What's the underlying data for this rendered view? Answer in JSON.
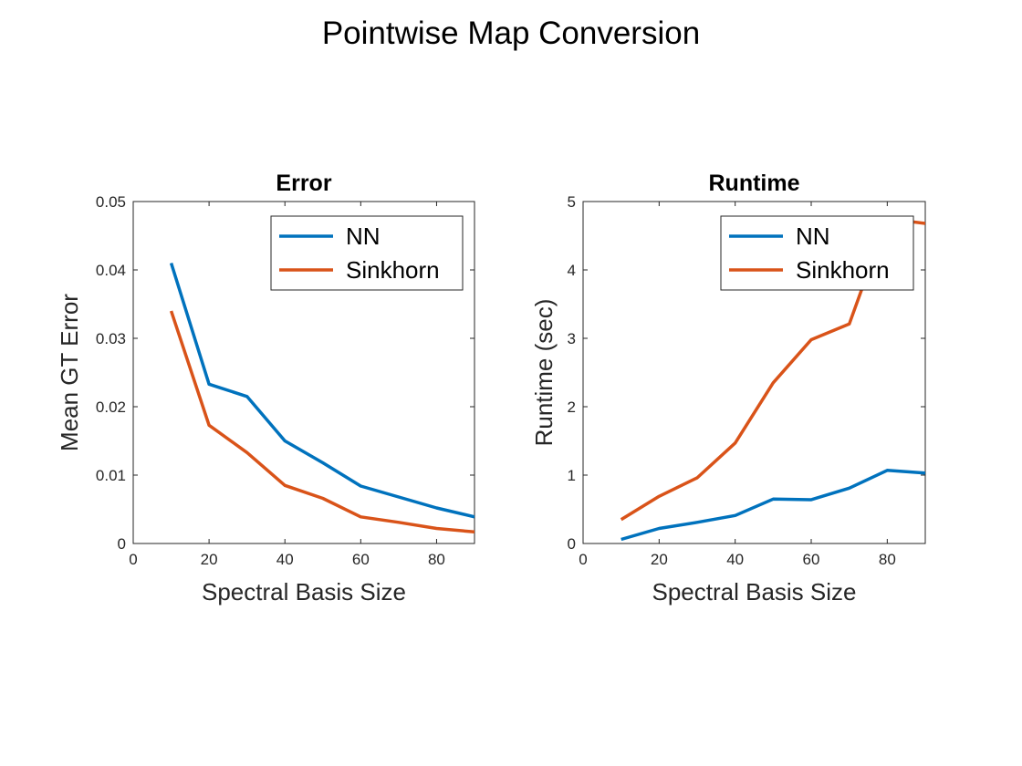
{
  "figure_title": "Pointwise Map Conversion",
  "chart_data": [
    {
      "type": "line",
      "title": "Error",
      "xlabel": "Spectral Basis Size",
      "ylabel": "Mean GT Error",
      "xlim": [
        0,
        90
      ],
      "ylim": [
        0,
        0.05
      ],
      "xticks": [
        0,
        20,
        40,
        60,
        80
      ],
      "xtick_labels": [
        "0",
        "20",
        "40",
        "60",
        "80"
      ],
      "yticks": [
        0,
        0.01,
        0.02,
        0.03,
        0.04,
        0.05
      ],
      "ytick_labels": [
        "0",
        "0.01",
        "0.02",
        "0.03",
        "0.04",
        "0.05"
      ],
      "grid": false,
      "legend_position": "top-right",
      "x": [
        10,
        20,
        30,
        40,
        50,
        60,
        70,
        80,
        90
      ],
      "series": [
        {
          "name": "NN",
          "color": "#0072BD",
          "values": [
            0.041,
            0.0233,
            0.0215,
            0.015,
            0.0118,
            0.0084,
            0.0068,
            0.0052,
            0.0039
          ]
        },
        {
          "name": "Sinkhorn",
          "color": "#D95319",
          "values": [
            0.034,
            0.0173,
            0.0133,
            0.0085,
            0.0066,
            0.0039,
            0.0031,
            0.0022,
            0.0017
          ]
        }
      ]
    },
    {
      "type": "line",
      "title": "Runtime",
      "xlabel": "Spectral Basis Size",
      "ylabel": "Runtime (sec)",
      "xlim": [
        0,
        90
      ],
      "ylim": [
        0,
        5
      ],
      "xticks": [
        0,
        20,
        40,
        60,
        80
      ],
      "xtick_labels": [
        "0",
        "20",
        "40",
        "60",
        "80"
      ],
      "yticks": [
        0,
        1,
        2,
        3,
        4,
        5
      ],
      "ytick_labels": [
        "0",
        "1",
        "2",
        "3",
        "4",
        "5"
      ],
      "grid": false,
      "legend_position": "top-right",
      "x": [
        10,
        20,
        30,
        40,
        50,
        60,
        70,
        80,
        90
      ],
      "series": [
        {
          "name": "NN",
          "color": "#0072BD",
          "values": [
            0.06,
            0.22,
            0.31,
            0.41,
            0.65,
            0.64,
            0.81,
            1.07,
            1.03
          ]
        },
        {
          "name": "Sinkhorn",
          "color": "#D95319",
          "values": [
            0.35,
            0.69,
            0.96,
            1.47,
            2.35,
            2.98,
            3.21,
            4.75,
            4.68
          ]
        }
      ]
    }
  ]
}
